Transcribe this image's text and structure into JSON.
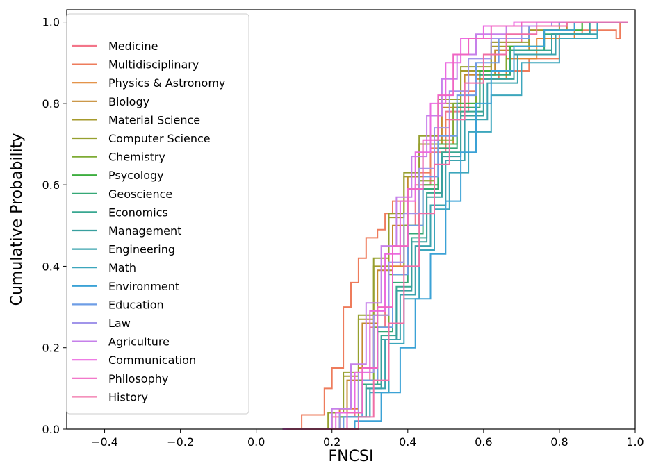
{
  "chart_data": {
    "type": "line",
    "subtype": "empirical-cdf-step",
    "title": "",
    "xlabel": "FNCSI",
    "ylabel": "Cumulative Probability",
    "xlim": [
      -0.5,
      1.0
    ],
    "ylim": [
      0.0,
      1.03
    ],
    "x_ticks": [
      "−0.4",
      "−0.2",
      "0.0",
      "0.2",
      "0.4",
      "0.6",
      "0.8",
      "1.0"
    ],
    "x_tick_values": [
      -0.4,
      -0.2,
      0.0,
      0.2,
      0.4,
      0.6,
      0.8,
      1.0
    ],
    "y_ticks": [
      "0.0",
      "0.2",
      "0.4",
      "0.6",
      "0.8",
      "1.0"
    ],
    "y_tick_values": [
      0.0,
      0.2,
      0.4,
      0.6,
      0.8,
      1.0
    ],
    "grid": false,
    "legend_position": "upper-left",
    "series": [
      {
        "name": "Medicine",
        "color": "#f37589",
        "points": [
          [
            0.07,
            0
          ],
          [
            0.2,
            0.03
          ],
          [
            0.26,
            0.12
          ],
          [
            0.3,
            0.25
          ],
          [
            0.34,
            0.4
          ],
          [
            0.38,
            0.5
          ],
          [
            0.42,
            0.6
          ],
          [
            0.46,
            0.68
          ],
          [
            0.5,
            0.78
          ],
          [
            0.56,
            0.88
          ],
          [
            0.62,
            0.95
          ],
          [
            0.7,
            0.99
          ],
          [
            0.8,
            1.0
          ]
        ]
      },
      {
        "name": "Multidisciplinary",
        "color": "#ee7c5c",
        "points": [
          [
            0.1,
            0
          ],
          [
            0.12,
            0.035
          ],
          [
            0.18,
            0.1
          ],
          [
            0.2,
            0.15
          ],
          [
            0.23,
            0.3
          ],
          [
            0.25,
            0.36
          ],
          [
            0.27,
            0.42
          ],
          [
            0.29,
            0.47
          ],
          [
            0.32,
            0.49
          ],
          [
            0.34,
            0.53
          ],
          [
            0.36,
            0.56
          ],
          [
            0.4,
            0.59
          ],
          [
            0.43,
            0.63
          ],
          [
            0.46,
            0.69
          ],
          [
            0.5,
            0.76
          ],
          [
            0.54,
            0.83
          ],
          [
            0.58,
            0.86
          ],
          [
            0.64,
            0.88
          ],
          [
            0.72,
            0.91
          ],
          [
            0.8,
            0.97
          ],
          [
            0.86,
            0.98
          ],
          [
            0.95,
            0.96
          ],
          [
            0.96,
            1.0
          ]
        ]
      },
      {
        "name": "Physics & Astronomy",
        "color": "#e08431",
        "points": [
          [
            0.08,
            0
          ],
          [
            0.22,
            0.05
          ],
          [
            0.27,
            0.15
          ],
          [
            0.31,
            0.28
          ],
          [
            0.35,
            0.4
          ],
          [
            0.39,
            0.5
          ],
          [
            0.43,
            0.61
          ],
          [
            0.47,
            0.7
          ],
          [
            0.52,
            0.79
          ],
          [
            0.58,
            0.86
          ],
          [
            0.66,
            0.91
          ],
          [
            0.74,
            0.96
          ],
          [
            0.84,
            1.0
          ]
        ]
      },
      {
        "name": "Biology",
        "color": "#c58a30",
        "points": [
          [
            0.07,
            0
          ],
          [
            0.2,
            0.04
          ],
          [
            0.24,
            0.12
          ],
          [
            0.28,
            0.26
          ],
          [
            0.32,
            0.39
          ],
          [
            0.36,
            0.5
          ],
          [
            0.4,
            0.62
          ],
          [
            0.44,
            0.7
          ],
          [
            0.49,
            0.79
          ],
          [
            0.55,
            0.87
          ],
          [
            0.63,
            0.93
          ],
          [
            0.72,
            0.98
          ],
          [
            0.82,
            1.0
          ]
        ]
      },
      {
        "name": "Material Science",
        "color": "#a69a2c",
        "points": [
          [
            0.07,
            0
          ],
          [
            0.19,
            0.04
          ],
          [
            0.23,
            0.13
          ],
          [
            0.27,
            0.27
          ],
          [
            0.31,
            0.4
          ],
          [
            0.35,
            0.52
          ],
          [
            0.39,
            0.62
          ],
          [
            0.43,
            0.7
          ],
          [
            0.48,
            0.8
          ],
          [
            0.54,
            0.88
          ],
          [
            0.62,
            0.94
          ],
          [
            0.72,
            0.98
          ],
          [
            0.8,
            1.0
          ]
        ]
      },
      {
        "name": "Computer Science",
        "color": "#96a02f",
        "points": [
          [
            0.07,
            0
          ],
          [
            0.19,
            0.04
          ],
          [
            0.23,
            0.14
          ],
          [
            0.27,
            0.28
          ],
          [
            0.31,
            0.42
          ],
          [
            0.35,
            0.53
          ],
          [
            0.39,
            0.63
          ],
          [
            0.43,
            0.72
          ],
          [
            0.48,
            0.81
          ],
          [
            0.54,
            0.89
          ],
          [
            0.62,
            0.95
          ],
          [
            0.72,
            0.99
          ],
          [
            0.8,
            1.0
          ]
        ]
      },
      {
        "name": "Chemistry",
        "color": "#7eab34",
        "points": [
          [
            0.08,
            0
          ],
          [
            0.22,
            0.03
          ],
          [
            0.27,
            0.12
          ],
          [
            0.31,
            0.25
          ],
          [
            0.35,
            0.38
          ],
          [
            0.39,
            0.5
          ],
          [
            0.43,
            0.61
          ],
          [
            0.47,
            0.71
          ],
          [
            0.52,
            0.8
          ],
          [
            0.58,
            0.88
          ],
          [
            0.66,
            0.94
          ],
          [
            0.76,
            0.98
          ],
          [
            0.86,
            1.0
          ]
        ]
      },
      {
        "name": "Psycology",
        "color": "#3dae3f",
        "points": [
          [
            0.08,
            0
          ],
          [
            0.22,
            0.03
          ],
          [
            0.28,
            0.12
          ],
          [
            0.32,
            0.25
          ],
          [
            0.36,
            0.38
          ],
          [
            0.4,
            0.5
          ],
          [
            0.44,
            0.6
          ],
          [
            0.48,
            0.7
          ],
          [
            0.53,
            0.8
          ],
          [
            0.59,
            0.88
          ],
          [
            0.67,
            0.94
          ],
          [
            0.76,
            0.98
          ],
          [
            0.86,
            1.0
          ]
        ]
      },
      {
        "name": "Geoscience",
        "color": "#35a876",
        "points": [
          [
            0.08,
            0
          ],
          [
            0.23,
            0.03
          ],
          [
            0.28,
            0.11
          ],
          [
            0.32,
            0.24
          ],
          [
            0.36,
            0.36
          ],
          [
            0.4,
            0.48
          ],
          [
            0.44,
            0.59
          ],
          [
            0.48,
            0.69
          ],
          [
            0.53,
            0.79
          ],
          [
            0.59,
            0.87
          ],
          [
            0.67,
            0.93
          ],
          [
            0.76,
            0.97
          ],
          [
            0.88,
            1.0
          ]
        ]
      },
      {
        "name": "Economics",
        "color": "#38a791",
        "points": [
          [
            0.08,
            0
          ],
          [
            0.23,
            0.03
          ],
          [
            0.29,
            0.11
          ],
          [
            0.33,
            0.23
          ],
          [
            0.37,
            0.35
          ],
          [
            0.41,
            0.47
          ],
          [
            0.45,
            0.58
          ],
          [
            0.49,
            0.68
          ],
          [
            0.54,
            0.78
          ],
          [
            0.6,
            0.86
          ],
          [
            0.68,
            0.93
          ],
          [
            0.78,
            0.97
          ],
          [
            0.88,
            1.0
          ]
        ]
      },
      {
        "name": "Management",
        "color": "#389f9e",
        "points": [
          [
            0.08,
            0
          ],
          [
            0.23,
            0.03
          ],
          [
            0.29,
            0.1
          ],
          [
            0.33,
            0.22
          ],
          [
            0.37,
            0.34
          ],
          [
            0.41,
            0.46
          ],
          [
            0.45,
            0.57
          ],
          [
            0.49,
            0.67
          ],
          [
            0.54,
            0.77
          ],
          [
            0.6,
            0.86
          ],
          [
            0.68,
            0.92
          ],
          [
            0.78,
            0.97
          ],
          [
            0.88,
            1.0
          ]
        ]
      },
      {
        "name": "Engineering",
        "color": "#3aa3ae",
        "points": [
          [
            0.08,
            0
          ],
          [
            0.24,
            0.03
          ],
          [
            0.3,
            0.1
          ],
          [
            0.34,
            0.22
          ],
          [
            0.38,
            0.33
          ],
          [
            0.42,
            0.45
          ],
          [
            0.46,
            0.55
          ],
          [
            0.5,
            0.66
          ],
          [
            0.55,
            0.76
          ],
          [
            0.61,
            0.85
          ],
          [
            0.69,
            0.92
          ],
          [
            0.79,
            0.97
          ],
          [
            0.9,
            1.0
          ]
        ]
      },
      {
        "name": "Math",
        "color": "#3ca6bc",
        "points": [
          [
            0.09,
            0
          ],
          [
            0.24,
            0.03
          ],
          [
            0.3,
            0.09
          ],
          [
            0.35,
            0.21
          ],
          [
            0.39,
            0.32
          ],
          [
            0.43,
            0.44
          ],
          [
            0.47,
            0.54
          ],
          [
            0.51,
            0.63
          ],
          [
            0.56,
            0.73
          ],
          [
            0.62,
            0.82
          ],
          [
            0.7,
            0.9
          ],
          [
            0.8,
            0.96
          ],
          [
            0.9,
            1.0
          ]
        ]
      },
      {
        "name": "Environment",
        "color": "#3ba2d6",
        "points": [
          [
            0.09,
            0
          ],
          [
            0.26,
            0.02
          ],
          [
            0.33,
            0.09
          ],
          [
            0.38,
            0.2
          ],
          [
            0.42,
            0.32
          ],
          [
            0.46,
            0.43
          ],
          [
            0.5,
            0.56
          ],
          [
            0.54,
            0.68
          ],
          [
            0.58,
            0.8
          ],
          [
            0.62,
            0.88
          ],
          [
            0.68,
            0.94
          ],
          [
            0.76,
            0.98
          ],
          [
            0.84,
            1.0
          ]
        ]
      },
      {
        "name": "Education",
        "color": "#6e9de6",
        "points": [
          [
            0.08,
            0
          ],
          [
            0.23,
            0.03
          ],
          [
            0.28,
            0.12
          ],
          [
            0.32,
            0.25
          ],
          [
            0.36,
            0.38
          ],
          [
            0.4,
            0.5
          ],
          [
            0.44,
            0.62
          ],
          [
            0.48,
            0.72
          ],
          [
            0.53,
            0.82
          ],
          [
            0.58,
            0.9
          ],
          [
            0.64,
            0.96
          ],
          [
            0.72,
            0.99
          ],
          [
            0.8,
            1.0
          ]
        ]
      },
      {
        "name": "Law",
        "color": "#a195ea",
        "points": [
          [
            0.08,
            0
          ],
          [
            0.22,
            0.04
          ],
          [
            0.27,
            0.14
          ],
          [
            0.31,
            0.28
          ],
          [
            0.35,
            0.41
          ],
          [
            0.39,
            0.53
          ],
          [
            0.43,
            0.64
          ],
          [
            0.47,
            0.74
          ],
          [
            0.51,
            0.83
          ],
          [
            0.56,
            0.91
          ],
          [
            0.62,
            0.96
          ],
          [
            0.7,
            0.99
          ],
          [
            0.78,
            1.0
          ]
        ]
      },
      {
        "name": "Agriculture",
        "color": "#c680ea",
        "points": [
          [
            0.07,
            0
          ],
          [
            0.2,
            0.05
          ],
          [
            0.25,
            0.16
          ],
          [
            0.29,
            0.31
          ],
          [
            0.33,
            0.45
          ],
          [
            0.37,
            0.57
          ],
          [
            0.41,
            0.67
          ],
          [
            0.45,
            0.77
          ],
          [
            0.49,
            0.86
          ],
          [
            0.53,
            0.92
          ],
          [
            0.58,
            0.97
          ],
          [
            0.66,
            0.99
          ],
          [
            0.74,
            1.0
          ]
        ]
      },
      {
        "name": "Communication",
        "color": "#ec6ae0",
        "points": [
          [
            0.07,
            0
          ],
          [
            0.21,
            0.04
          ],
          [
            0.26,
            0.14
          ],
          [
            0.3,
            0.29
          ],
          [
            0.34,
            0.43
          ],
          [
            0.38,
            0.56
          ],
          [
            0.42,
            0.68
          ],
          [
            0.46,
            0.8
          ],
          [
            0.5,
            0.9
          ],
          [
            0.54,
            0.96
          ],
          [
            0.6,
            0.99
          ],
          [
            0.68,
            1.0
          ]
        ]
      },
      {
        "name": "Philosophy",
        "color": "#f065c3",
        "points": [
          [
            0.08,
            0
          ],
          [
            0.24,
            0.04
          ],
          [
            0.28,
            0.15
          ],
          [
            0.32,
            0.3
          ],
          [
            0.36,
            0.45
          ],
          [
            0.4,
            0.59
          ],
          [
            0.44,
            0.71
          ],
          [
            0.48,
            0.82
          ],
          [
            0.52,
            0.92
          ],
          [
            0.56,
            0.96
          ],
          [
            0.62,
            0.99
          ],
          [
            0.7,
            1.0
          ]
        ]
      },
      {
        "name": "History",
        "color": "#f06ea5",
        "points": [
          [
            0.09,
            0
          ],
          [
            0.27,
            0.03
          ],
          [
            0.31,
            0.12
          ],
          [
            0.35,
            0.26
          ],
          [
            0.39,
            0.4
          ],
          [
            0.43,
            0.53
          ],
          [
            0.47,
            0.65
          ],
          [
            0.51,
            0.76
          ],
          [
            0.55,
            0.85
          ],
          [
            0.6,
            0.92
          ],
          [
            0.66,
            0.97
          ],
          [
            0.74,
            0.99
          ],
          [
            0.82,
            1.0
          ]
        ]
      }
    ]
  }
}
